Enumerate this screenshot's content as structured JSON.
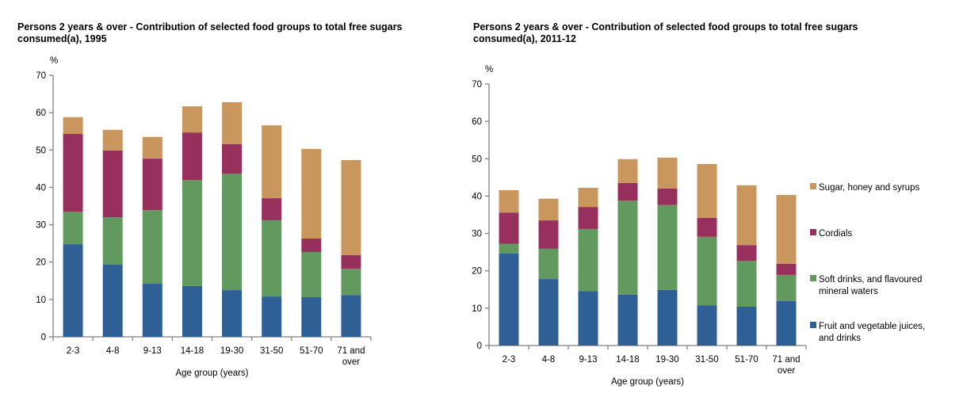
{
  "chart_data": [
    {
      "type": "bar",
      "stacked": true,
      "title": "Persons 2 years & over - Contribution of selected food groups to total free sugars consumed(a), 1995",
      "title_lines": [
        "Persons 2 years & over - Contribution  of selected food groups to total free sugars",
        "consumed(a), 1995"
      ],
      "ylabel": "%",
      "xlabel": "Age group (years)",
      "ylim": [
        0,
        70
      ],
      "yticks": [
        0,
        10,
        20,
        30,
        40,
        50,
        60,
        70
      ],
      "categories": [
        "2-3",
        "4-8",
        "9-13",
        "14-18",
        "19-30",
        "31-50",
        "51-70",
        "71 and over"
      ],
      "series": [
        {
          "name": "Fruit and vegetable juices, and drinks",
          "color": "#2e6096",
          "values": [
            24.8,
            19.3,
            14.2,
            13.6,
            12.5,
            10.8,
            10.6,
            11.2
          ]
        },
        {
          "name": "Soft drinks, and flavoured mineral waters",
          "color": "#62995e",
          "values": [
            8.7,
            12.7,
            19.7,
            28.4,
            31.2,
            20.4,
            12.1,
            7.0
          ]
        },
        {
          "name": "Cordials",
          "color": "#98305d",
          "values": [
            20.8,
            17.9,
            13.8,
            12.7,
            7.9,
            5.9,
            3.6,
            3.7
          ]
        },
        {
          "name": "Sugar, honey and syrups",
          "color": "#c9975e",
          "values": [
            4.5,
            5.5,
            5.8,
            7.0,
            11.2,
            19.5,
            24.0,
            25.4
          ]
        }
      ],
      "grid": false
    },
    {
      "type": "bar",
      "stacked": true,
      "title": "Persons 2 years & over - Contribution of selected food groups to total free sugars consumed(a), 2011-12",
      "title_lines": [
        "Persons 2 years & over - Contribution  of selected food groups to total free sugars",
        "consumed(a), 2011-12"
      ],
      "ylabel": "%",
      "xlabel": "Age group (years)",
      "ylim": [
        0,
        70
      ],
      "yticks": [
        0,
        10,
        20,
        30,
        40,
        50,
        60,
        70
      ],
      "categories": [
        "2-3",
        "4-8",
        "9-13",
        "14-18",
        "19-30",
        "31-50",
        "51-70",
        "71 and over"
      ],
      "series": [
        {
          "name": "Fruit and vegetable juices, and drinks",
          "color": "#2e6096",
          "values": [
            24.6,
            17.8,
            14.6,
            13.6,
            14.9,
            10.8,
            10.4,
            11.9
          ]
        },
        {
          "name": "Soft drinks, and flavoured mineral waters",
          "color": "#62995e",
          "values": [
            2.6,
            8.1,
            16.6,
            25.2,
            22.7,
            18.3,
            12.3,
            7.0
          ]
        },
        {
          "name": "Cordials",
          "color": "#98305d",
          "values": [
            8.4,
            7.6,
            5.9,
            4.7,
            4.4,
            5.1,
            4.2,
            3.0
          ]
        },
        {
          "name": "Sugar, honey and syrups",
          "color": "#c9975e",
          "values": [
            6.0,
            5.8,
            5.1,
            6.4,
            8.3,
            14.4,
            16.0,
            18.4
          ]
        }
      ],
      "legend": {
        "position": "right",
        "items": [
          {
            "lines": [
              "Sugar, honey and syrups"
            ],
            "color": "#c9975e"
          },
          {
            "lines": [
              "Cordials"
            ],
            "color": "#98305d"
          },
          {
            "lines": [
              "Soft drinks, and flavoured",
              "mineral waters"
            ],
            "color": "#62995e"
          },
          {
            "lines": [
              "Fruit and vegetable juices,",
              "and drinks"
            ],
            "color": "#2e6096"
          }
        ]
      },
      "grid": false
    }
  ]
}
